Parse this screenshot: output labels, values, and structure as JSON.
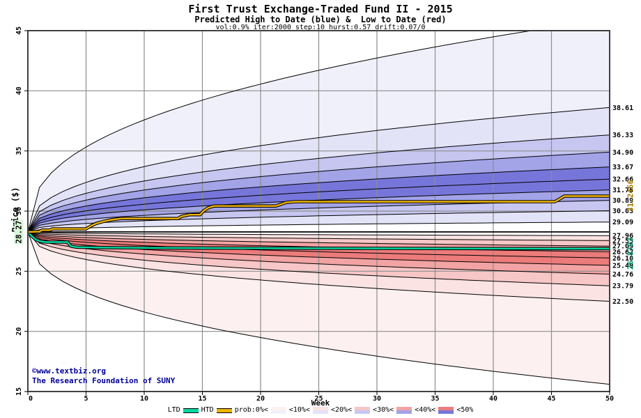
{
  "header": {
    "title": "First Trust Exchange-Traded Fund II - 2015",
    "subtitle": "Predicted High to Date (blue) &  Low to Date (red)",
    "params": "vol:0.9% iter:2000 step:10 hurst:0.57 drift:0.07/0"
  },
  "watermark": {
    "line1": "©www.textbiz.org",
    "line2": "The Research Foundation of SUNY",
    "color": "#000099"
  },
  "axes": {
    "x_label": "Week",
    "y_label": "Price ($)",
    "x_ticks": [
      0,
      5,
      10,
      15,
      20,
      25,
      30,
      35,
      40,
      45,
      50
    ],
    "y_ticks": [
      15,
      20,
      25,
      30,
      35,
      40,
      45
    ],
    "start_label": {
      "text": "28.27",
      "bg": "#d9f7d9",
      "color": "#000000"
    }
  },
  "chart_data": {
    "type": "area",
    "description": "Monte Carlo fan chart: probability bands of predicted High-to-Date (blue, above start price) and Low-to-Date (red, below start price) over 50 weeks",
    "x_range": [
      0,
      50
    ],
    "y_range": [
      15,
      45
    ],
    "start_price": 28.27,
    "fan_exponent": 0.4,
    "upper_percentile_ends": [
      29.09,
      30.03,
      30.89,
      31.76,
      32.66,
      33.67,
      34.9,
      36.33,
      38.61,
      46.0
    ],
    "lower_percentile_ends": [
      27.96,
      27.55,
      27.09,
      26.62,
      26.1,
      25.49,
      24.76,
      23.79,
      22.5,
      15.6
    ],
    "upper_band_colors": [
      "#ffffff",
      "#e3e3f8",
      "#c6c6f1",
      "#a3a3e8",
      "#7676da",
      "#7676da",
      "#a3a3e8",
      "#c6c6f1",
      "#e3e3f8",
      "#f0f0fb"
    ],
    "lower_band_colors": [
      "#ffffff",
      "#fbe3e3",
      "#f7c6c6",
      "#f2a3a3",
      "#ec7b7b",
      "#ec7b7b",
      "#f2a3a3",
      "#f7c6c6",
      "#fbe3e3",
      "#fdf0f0"
    ],
    "right_axis_labels": [
      {
        "text": "38.61",
        "value": 38.61
      },
      {
        "text": "36.33",
        "value": 36.33
      },
      {
        "text": "34.90",
        "value": 34.9
      },
      {
        "text": "33.67",
        "value": 33.67
      },
      {
        "text": "32.66",
        "value": 32.66
      },
      {
        "text": "31.76",
        "value": 31.76
      },
      {
        "text": "30.89",
        "value": 30.89
      },
      {
        "text": "30.03",
        "value": 30.03
      },
      {
        "text": "29.09",
        "value": 29.09
      },
      {
        "text": "27.96",
        "value": 27.96
      },
      {
        "text": "27.55",
        "value": 27.55
      },
      {
        "text": "27.09",
        "value": 27.09
      },
      {
        "text": "26.62",
        "value": 26.62
      },
      {
        "text": "26.10",
        "value": 26.1
      },
      {
        "text": "25.49",
        "value": 25.49
      },
      {
        "text": "24.76",
        "value": 24.76
      },
      {
        "text": "23.79",
        "value": 23.79
      },
      {
        "text": "22.50",
        "value": 22.5
      }
    ],
    "htd_series": {
      "label": "HTD",
      "color": "#f0b400",
      "outline": "#000000",
      "final_value": 31.2456,
      "final_label": "31.2456",
      "final_label_color": "#a07800",
      "points": [
        [
          0,
          28.27
        ],
        [
          1.0,
          28.3
        ],
        [
          1.2,
          28.42
        ],
        [
          1.9,
          28.42
        ],
        [
          2.1,
          28.52
        ],
        [
          5.0,
          28.52
        ],
        [
          5.4,
          28.76
        ],
        [
          5.9,
          28.98
        ],
        [
          6.5,
          29.14
        ],
        [
          7.2,
          29.28
        ],
        [
          8.0,
          29.38
        ],
        [
          12.9,
          29.38
        ],
        [
          13.2,
          29.56
        ],
        [
          13.9,
          29.7
        ],
        [
          14.8,
          29.7
        ],
        [
          15.1,
          30.02
        ],
        [
          15.5,
          30.28
        ],
        [
          16.0,
          30.42
        ],
        [
          21.3,
          30.42
        ],
        [
          21.8,
          30.58
        ],
        [
          22.2,
          30.72
        ],
        [
          23.0,
          30.78
        ],
        [
          45.3,
          30.78
        ],
        [
          45.7,
          31.0
        ],
        [
          46.1,
          31.2456
        ],
        [
          50,
          31.2456
        ]
      ]
    },
    "ltd_series": {
      "label": "LTD",
      "color": "#00d9a3",
      "outline": "#000000",
      "final_value": 26.8793,
      "final_label": "26.8793",
      "final_label_color": "#00916b",
      "points": [
        [
          0,
          28.27
        ],
        [
          0.3,
          27.95
        ],
        [
          0.7,
          27.62
        ],
        [
          1.2,
          27.45
        ],
        [
          1.6,
          27.42
        ],
        [
          3.4,
          27.42
        ],
        [
          3.7,
          27.08
        ],
        [
          4.2,
          27.0
        ],
        [
          6,
          26.97
        ],
        [
          10,
          26.94
        ],
        [
          18,
          26.92
        ],
        [
          30,
          26.9
        ],
        [
          42,
          26.885
        ],
        [
          50,
          26.8793
        ]
      ]
    },
    "reference_line": {
      "value": 28.27,
      "color": "#000000"
    },
    "grid_color": "#8c8c8c",
    "border_color": "#404040"
  },
  "legend": {
    "ltd_label": "LTD",
    "htd_label": "HTD",
    "prob_label": "prob:0%<",
    "bands": [
      {
        "label_after": "<10%<",
        "red": "#fdf0f0",
        "blue": "#f0f0fb"
      },
      {
        "label_after": "<20%<",
        "red": "#fbe3e3",
        "blue": "#e3e3f8"
      },
      {
        "label_after": "<30%<",
        "red": "#f7c6c6",
        "blue": "#c6c6f1"
      },
      {
        "label_after": "<40%<",
        "red": "#f2a3a3",
        "blue": "#a3a3e8"
      },
      {
        "label_after": "<50%",
        "red": "#ec7b7b",
        "blue": "#7676da"
      }
    ]
  }
}
